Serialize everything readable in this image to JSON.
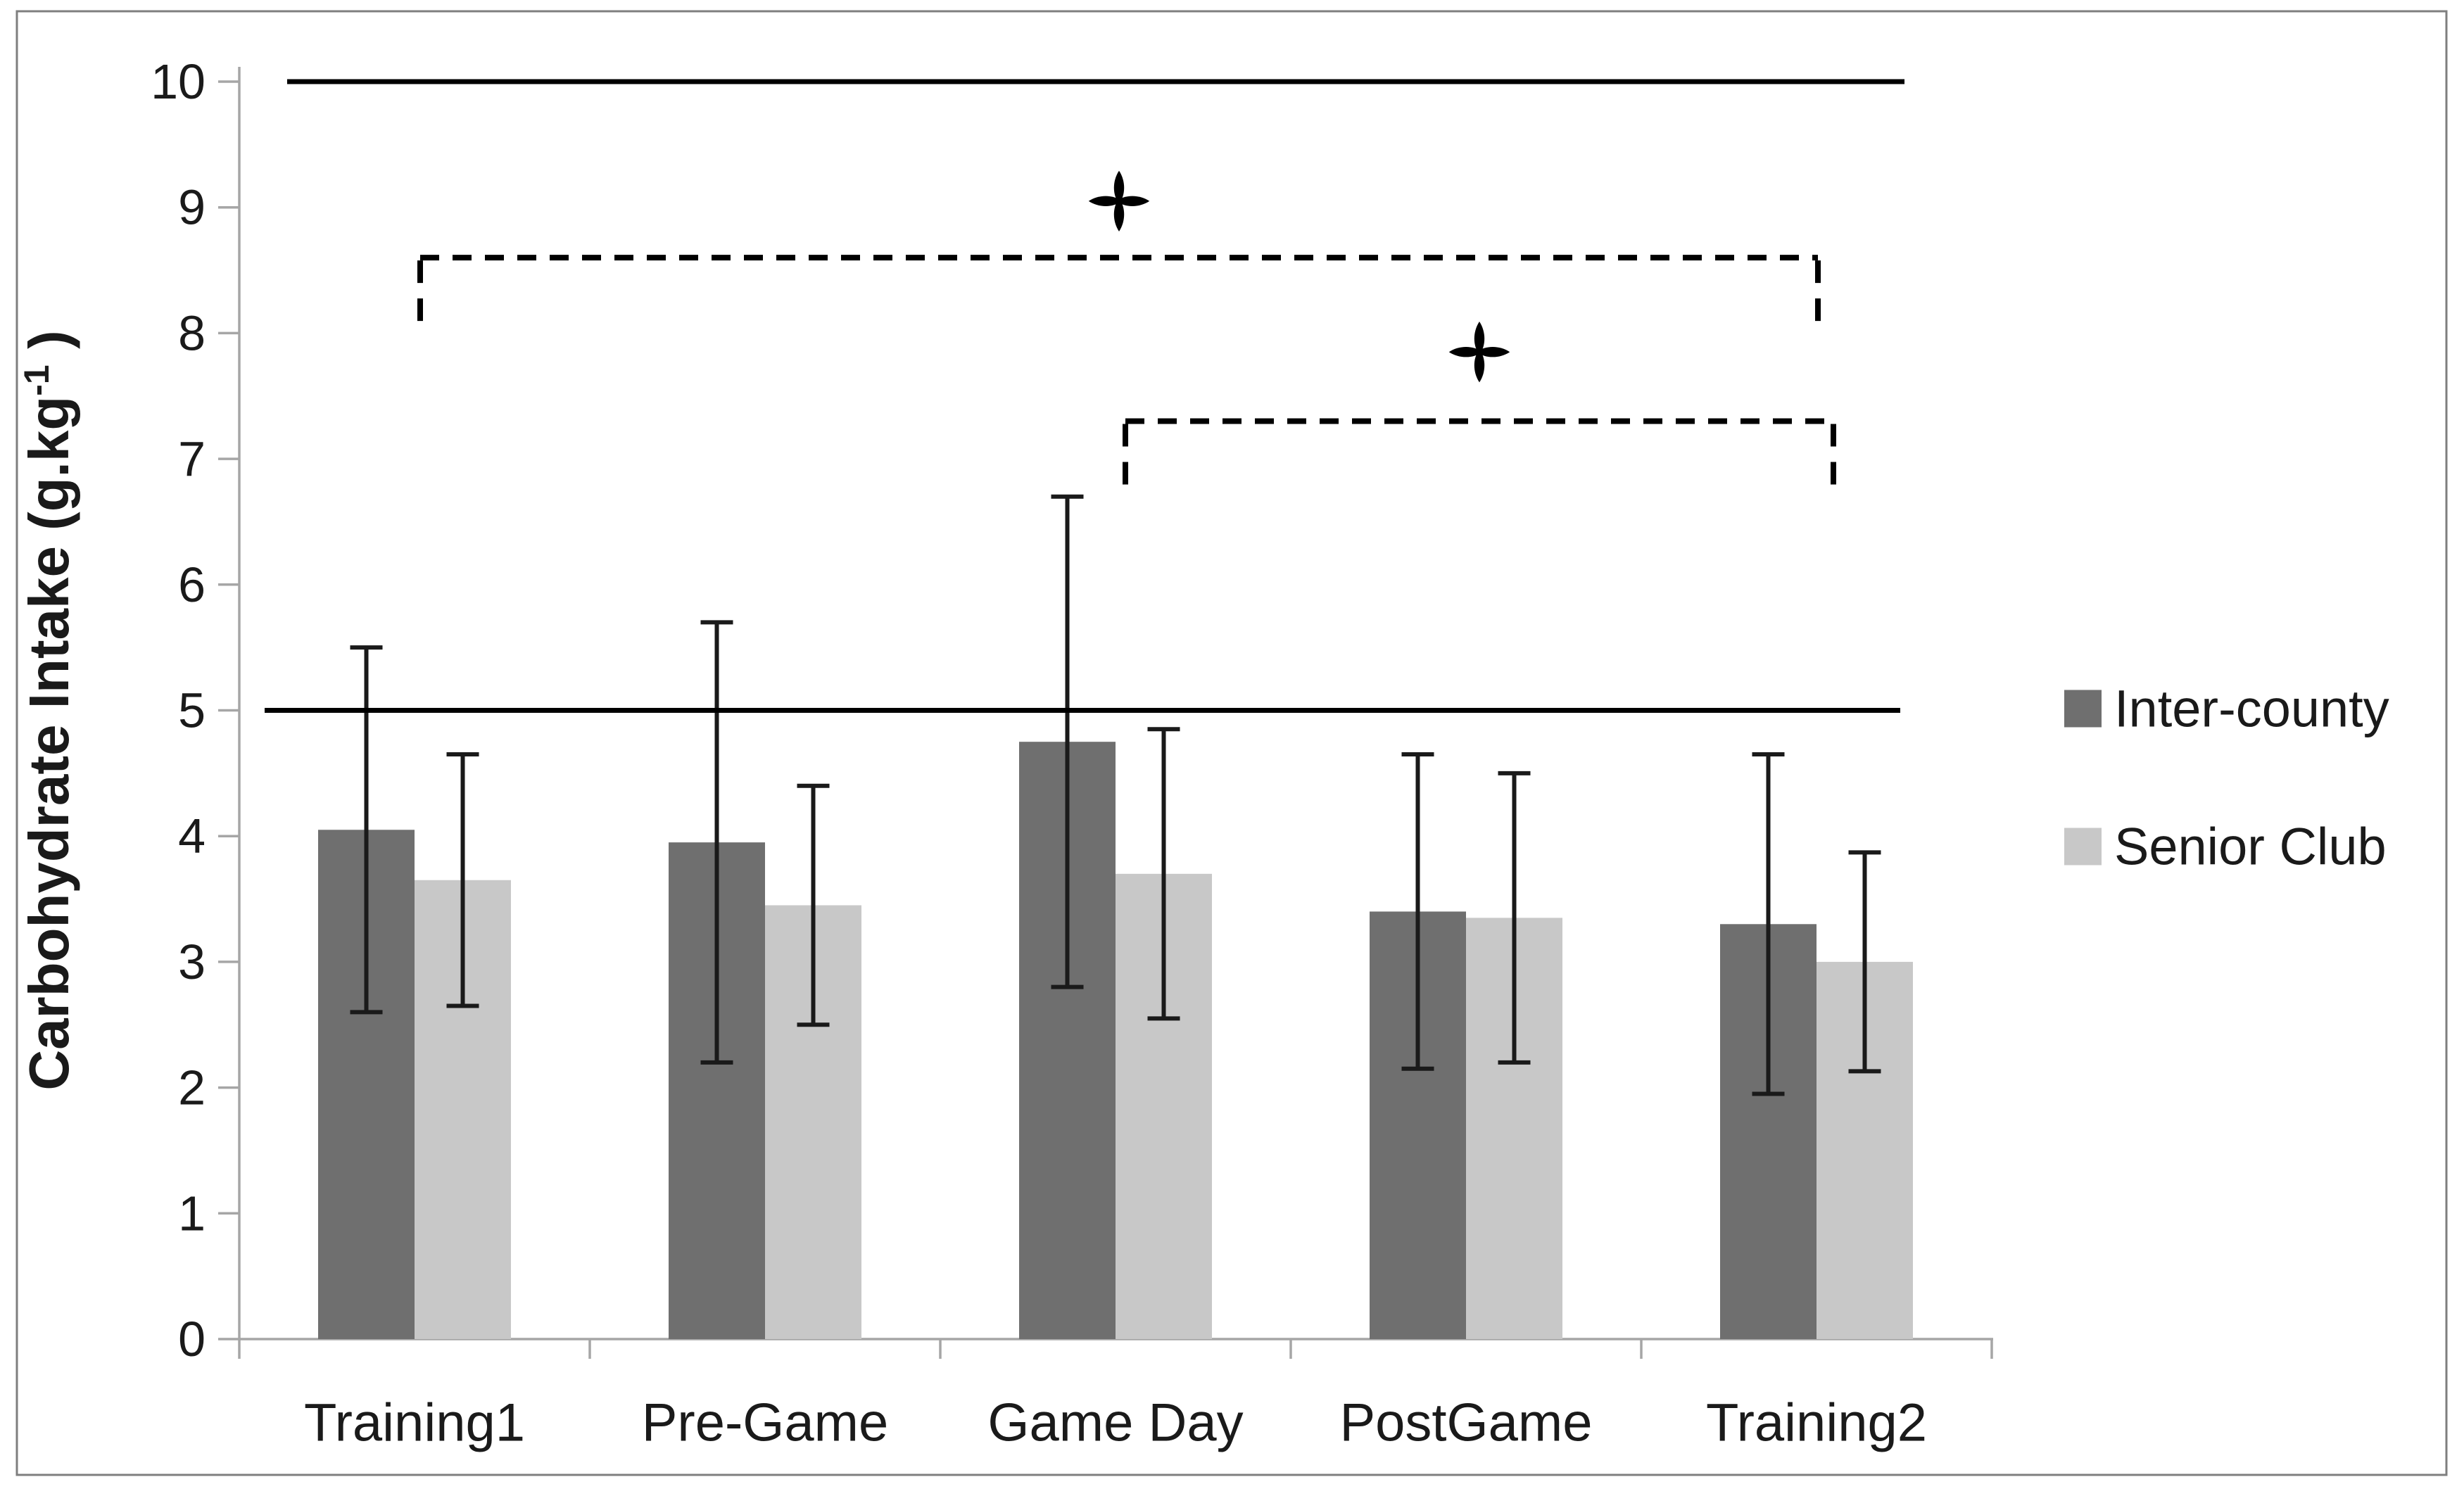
{
  "figure": {
    "background": "#ffffff",
    "border_color": "#7f7f7f",
    "text_color": "#1a1a1a"
  },
  "chart_data": {
    "type": "bar",
    "title": "",
    "xlabel": "",
    "ylabel": "Carbohydrate Intake (g.kg-1 )",
    "ylabel_parts": {
      "pre": "Carbohydrate Intake (g.kg",
      "sup": "-1",
      "post": " )"
    },
    "categories": [
      "Training1",
      "Pre-Game",
      "Game Day",
      "PostGame",
      "Training2"
    ],
    "series": [
      {
        "name": "Inter-county",
        "color": "#6f6f6f",
        "values": [
          4.05,
          3.95,
          4.75,
          3.4,
          3.3
        ],
        "errors": [
          1.45,
          1.75,
          1.95,
          1.25,
          1.35
        ]
      },
      {
        "name": "Senior Club",
        "color": "#c8c8c8",
        "values": [
          3.65,
          3.45,
          3.7,
          3.35,
          3.0
        ],
        "errors": [
          1.0,
          0.95,
          1.15,
          1.15,
          0.87
        ]
      }
    ],
    "ylim": [
      0,
      10
    ],
    "ytick_step": 1,
    "yticks": [
      0,
      1,
      2,
      3,
      4,
      5,
      6,
      7,
      8,
      9,
      10
    ],
    "grid": false,
    "legend_position": "right",
    "axis_color": "#a6a6a6",
    "error_bar_color": "#1a1a1a",
    "reference_lines": [
      {
        "y": 10,
        "style": "solid",
        "color": "#000000"
      },
      {
        "y": 5,
        "style": "solid",
        "color": "#000000"
      }
    ],
    "significance_brackets": [
      {
        "from": "Training1",
        "to": "Training2",
        "y": 8.6,
        "symbol": "✣",
        "symbol_y": 9.05
      },
      {
        "from": "Game Day",
        "to": "Training2",
        "y": 7.3,
        "symbol": "✣",
        "symbol_y": 7.85
      }
    ]
  }
}
